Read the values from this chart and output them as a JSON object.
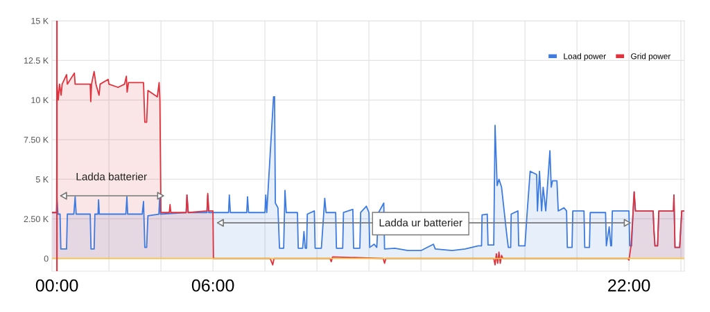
{
  "chart_data": {
    "type": "area",
    "xlim": [
      -0.19,
      24.13
    ],
    "xticks": [
      {
        "value": 0,
        "label": "00:00"
      },
      {
        "value": 2,
        "label": null
      },
      {
        "value": 4,
        "label": null
      },
      {
        "value": 6,
        "label": "06:00"
      },
      {
        "value": 8,
        "label": null
      },
      {
        "value": 10,
        "label": null
      },
      {
        "value": 12,
        "label": null
      },
      {
        "value": 14,
        "label": null
      },
      {
        "value": 16,
        "label": null
      },
      {
        "value": 18,
        "label": null
      },
      {
        "value": 20,
        "label": null
      },
      {
        "value": 22,
        "label": "22:00"
      },
      {
        "value": 24,
        "label": null
      }
    ],
    "ylim": [
      -800,
      15000
    ],
    "yticks": [
      {
        "value": 0,
        "label": "0"
      },
      {
        "value": 2500,
        "label": "2.50 K"
      },
      {
        "value": 5000,
        "label": "5 K"
      },
      {
        "value": 7500,
        "label": "7.50 K"
      },
      {
        "value": 10000,
        "label": "10 K"
      },
      {
        "value": 12500,
        "label": "12.5 K"
      },
      {
        "value": 15000,
        "label": "15 K"
      }
    ],
    "grid": true,
    "legend": "top right",
    "ref_lines": [
      {
        "axis": "x",
        "value": 0,
        "color": "#e0323c"
      }
    ],
    "annotations": [
      "Ladda batterier",
      "Ladda ur batterier"
    ],
    "series": [
      {
        "name": "Load power",
        "color": "#3d7be0",
        "x": [
          -0.19,
          -0.02,
          0.0,
          0.04,
          0.12,
          0.15,
          0.37,
          0.4,
          0.65,
          0.7,
          0.74,
          1.28,
          1.31,
          1.43,
          1.46,
          1.58,
          1.6,
          1.63,
          2.65,
          2.69,
          2.72,
          3.28,
          3.33,
          3.38,
          3.45,
          3.5,
          3.92,
          3.95,
          3.98,
          4.97,
          5.0,
          5.05,
          5.77,
          5.8,
          5.84,
          6.6,
          6.63,
          6.67,
          7.3,
          7.33,
          7.37,
          8.0,
          8.03,
          8.07,
          8.33,
          8.37,
          8.4,
          8.5,
          8.56,
          8.72,
          8.77,
          8.82,
          9.25,
          9.28,
          9.45,
          9.5,
          9.55,
          9.6,
          9.63,
          9.9,
          9.93,
          10.17,
          10.3,
          10.35,
          10.72,
          10.75,
          10.99,
          11.02,
          11.38,
          11.41,
          11.65,
          11.68,
          11.9,
          12.0,
          12.03,
          12.2,
          12.3,
          12.37,
          12.57,
          12.6,
          13.0,
          13.5,
          14.0,
          14.48,
          14.55,
          15.2,
          15.7,
          16.2,
          16.33,
          16.35,
          16.55,
          16.58,
          16.8,
          16.85,
          16.93,
          17.0,
          17.1,
          17.2,
          17.3,
          17.36,
          17.45,
          17.47,
          17.73,
          17.76,
          18.0,
          18.08,
          18.2,
          18.45,
          18.48,
          18.56,
          18.64,
          18.7,
          18.8,
          18.96,
          19.01,
          19.06,
          19.23,
          19.28,
          19.5,
          19.6,
          19.63,
          19.81,
          19.84,
          20.27,
          20.3,
          20.48,
          20.51,
          21.1,
          21.13,
          21.24,
          21.3,
          21.33,
          21.36,
          22.0,
          22.03,
          22.1,
          22.16,
          22.2,
          22.25,
          22.93,
          22.96,
          23.0,
          23.1,
          23.15,
          23.71,
          23.73,
          23.77,
          23.95,
          24.03,
          24.13
        ],
        "values": [
          2900,
          2900,
          3800,
          2800,
          2800,
          600,
          600,
          2800,
          2800,
          3900,
          2800,
          2800,
          600,
          600,
          2800,
          2800,
          3700,
          2800,
          2800,
          3900,
          2800,
          2800,
          3600,
          700,
          700,
          2700,
          2800,
          3800,
          2800,
          2900,
          4000,
          2900,
          2900,
          4000,
          2900,
          2900,
          4000,
          2900,
          2900,
          3900,
          2900,
          2900,
          4000,
          2900,
          10200,
          10200,
          3500,
          3200,
          650,
          650,
          4300,
          2900,
          2900,
          650,
          650,
          1700,
          650,
          650,
          2800,
          3000,
          650,
          650,
          3800,
          2900,
          2900,
          650,
          650,
          2900,
          3100,
          650,
          650,
          2900,
          3300,
          2900,
          700,
          900,
          700,
          2900,
          3500,
          600,
          650,
          500,
          500,
          900,
          600,
          500,
          600,
          800,
          800,
          2750,
          2800,
          850,
          850,
          8400,
          4600,
          5000,
          4500,
          3000,
          1500,
          700,
          700,
          2800,
          3000,
          800,
          800,
          2800,
          5500,
          5300,
          3000,
          5500,
          3000,
          4500,
          3000,
          6800,
          4500,
          4900,
          4900,
          3000,
          3200,
          3000,
          700,
          700,
          3000,
          3000,
          700,
          700,
          2900,
          2900,
          800,
          2000,
          800,
          800,
          3000,
          3000,
          800,
          800,
          3000,
          4200,
          3000,
          3000,
          1800,
          800,
          800,
          3000,
          3000,
          4000,
          700,
          700,
          3000,
          3000
        ]
      },
      {
        "name": "Grid power",
        "color": "#e0323c",
        "x": [
          -0.19,
          -0.01,
          0.0,
          0.05,
          0.1,
          0.16,
          0.2,
          0.37,
          0.4,
          0.67,
          0.7,
          1.28,
          1.3,
          1.33,
          1.43,
          1.5,
          1.62,
          1.66,
          1.97,
          2.0,
          2.35,
          2.6,
          2.67,
          2.7,
          2.75,
          3.33,
          3.38,
          3.45,
          3.5,
          3.86,
          3.93,
          3.96,
          4.0,
          4.32,
          4.35,
          4.38,
          4.97,
          5.0,
          5.05,
          5.77,
          5.8,
          5.84,
          6.0,
          6.02,
          8.2,
          8.3,
          8.35,
          10.5,
          10.55,
          10.6,
          12.55,
          12.6,
          12.65,
          16.8,
          16.85,
          16.9,
          16.95,
          17.0,
          17.05,
          17.1,
          17.15,
          21.95,
          22.0,
          22.08,
          22.16,
          22.2,
          22.25,
          22.93,
          22.96,
          23.0,
          23.1,
          23.15,
          23.71,
          23.73,
          23.77,
          23.95,
          24.03,
          24.13
        ],
        "values": [
          2900,
          2900,
          11000,
          10000,
          11000,
          10300,
          11000,
          11600,
          11000,
          11700,
          11000,
          11000,
          9900,
          11000,
          11800,
          11000,
          10300,
          11000,
          11300,
          11000,
          10800,
          11000,
          11500,
          10500,
          11100,
          11100,
          8600,
          8600,
          10600,
          10200,
          11100,
          10000,
          2900,
          2900,
          3400,
          2900,
          2900,
          4000,
          2900,
          3000,
          4100,
          3000,
          3000,
          0,
          0,
          -400,
          0,
          0,
          -200,
          100,
          0,
          -300,
          0,
          0,
          -400,
          300,
          -300,
          400,
          -300,
          200,
          0,
          0,
          -100,
          800,
          3000,
          4200,
          3000,
          3000,
          1800,
          800,
          800,
          3000,
          3000,
          4000,
          700,
          700,
          3000,
          3000
        ]
      },
      {
        "color": "#f6c342",
        "type": "line",
        "x": [
          -0.19,
          24.13
        ],
        "values": [
          0,
          0
        ]
      }
    ]
  }
}
